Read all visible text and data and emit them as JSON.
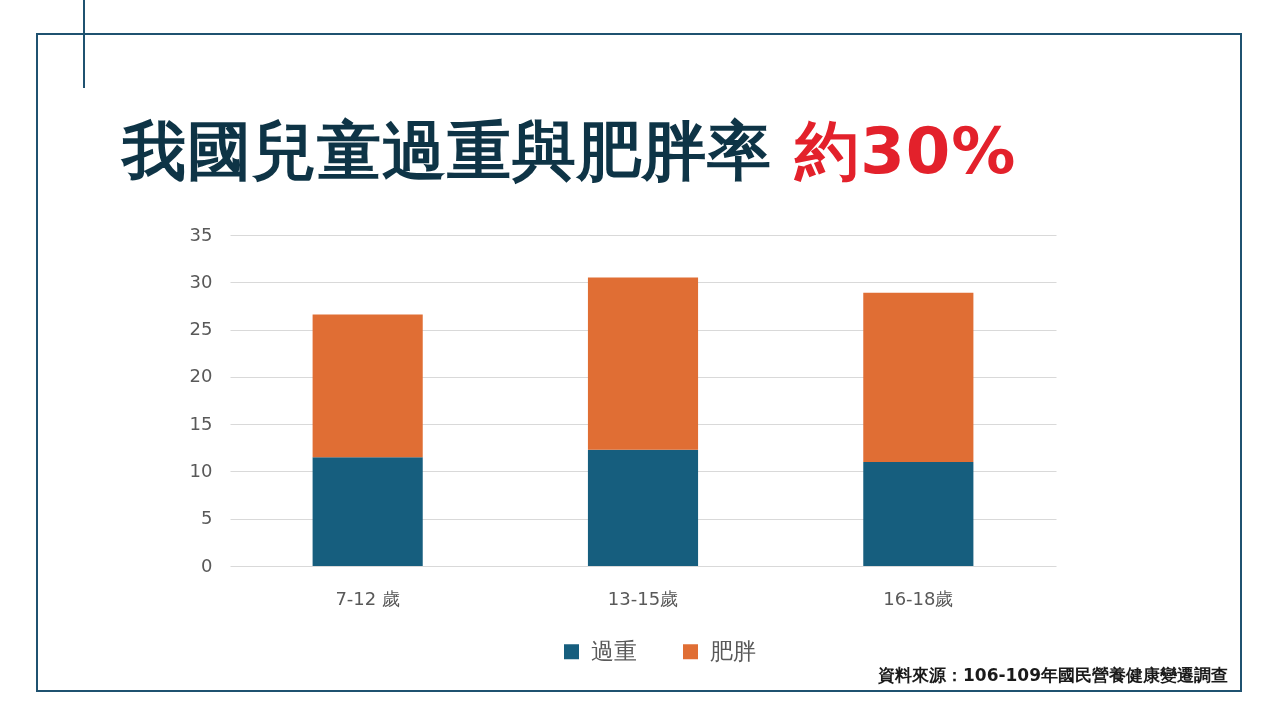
{
  "chart_data": {
    "type": "bar",
    "title": "我國兒童過重與肥胖率 約30%",
    "categories": [
      "7-12 歲",
      "13-15歲",
      "16-18歲"
    ],
    "series": [
      {
        "name": "過重",
        "color": "#165e7e",
        "values": [
          11.5,
          12.3,
          11.0
        ]
      },
      {
        "name": "肥胖",
        "color": "#e06e34",
        "values": [
          15.1,
          18.2,
          17.9
        ]
      }
    ],
    "stacked": true,
    "ylim": [
      0,
      35
    ],
    "yticks": [
      0,
      5,
      10,
      15,
      20,
      25,
      30,
      35
    ],
    "grid": "y",
    "legend": "bottom",
    "annotations": [
      "資料來源：106-109年國民營養健康變遷調查"
    ]
  }
}
